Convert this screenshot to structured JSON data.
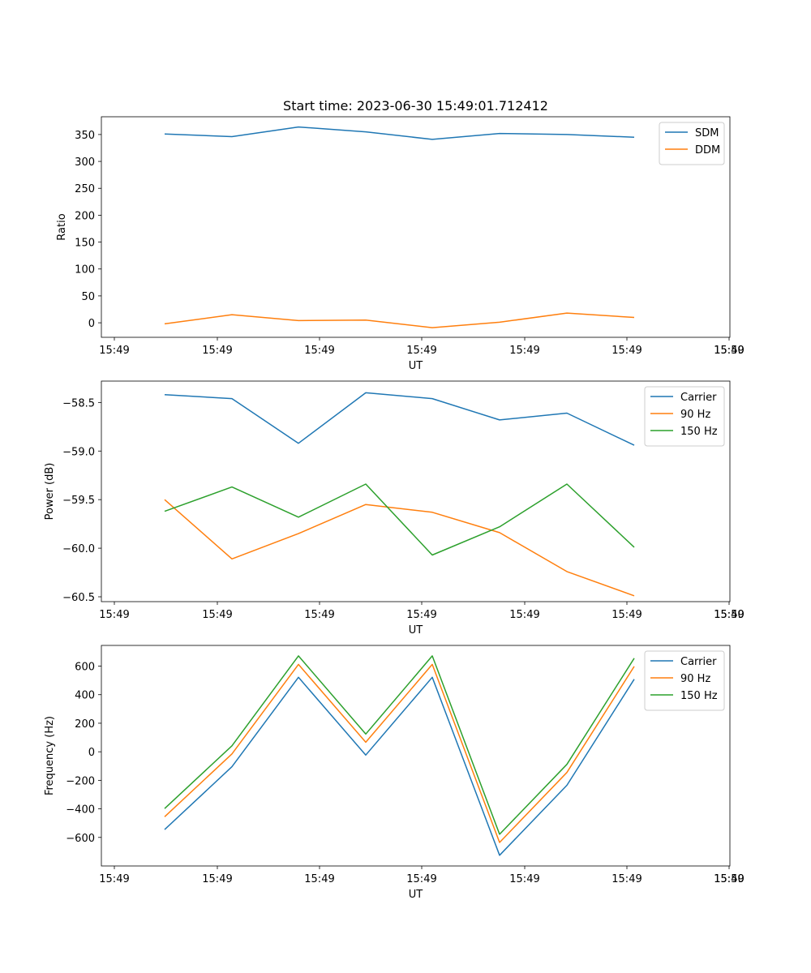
{
  "figure_title": "Start time: 2023-06-30 15:49:01.712412",
  "chart_data": [
    {
      "type": "line",
      "title": "Start time: 2023-06-30 15:49:01.712412",
      "xlabel": "UT",
      "ylabel": "Ratio",
      "x_tick_labels": [
        "15:49",
        "15:49",
        "15:49",
        "15:49",
        "15:49",
        "15:49",
        "15:49",
        "15:50"
      ],
      "y_ticks": [
        0,
        50,
        100,
        150,
        200,
        250,
        300,
        350
      ],
      "ylim": [
        -27,
        383
      ],
      "grid": false,
      "legend_position": "top-right",
      "series": [
        {
          "name": "SDM",
          "color": "#1f77b4",
          "values": [
            351,
            346,
            364,
            355,
            341,
            352,
            350,
            345
          ]
        },
        {
          "name": "DDM",
          "color": "#ff7f0e",
          "values": [
            -2,
            15,
            4,
            5,
            -9,
            1,
            18,
            10
          ]
        }
      ]
    },
    {
      "type": "line",
      "title": "",
      "xlabel": "UT",
      "ylabel": "Power (dB)",
      "x_tick_labels": [
        "15:49",
        "15:49",
        "15:49",
        "15:49",
        "15:49",
        "15:49",
        "15:49",
        "15:50"
      ],
      "y_ticks": [
        -58.5,
        -59.0,
        -59.5,
        -60.0,
        -60.5
      ],
      "y_tick_labels": [
        "−58.5",
        "−59.0",
        "−59.5",
        "−60.0",
        "−60.5"
      ],
      "ylim": [
        -60.55,
        -58.28
      ],
      "grid": false,
      "legend_position": "top-right",
      "series": [
        {
          "name": "Carrier",
          "color": "#1f77b4",
          "values": [
            -58.42,
            -58.46,
            -58.92,
            -58.4,
            -58.46,
            -58.68,
            -58.61,
            -58.94
          ]
        },
        {
          "name": "90 Hz",
          "color": "#ff7f0e",
          "values": [
            -59.5,
            -60.11,
            -59.85,
            -59.55,
            -59.63,
            -59.84,
            -60.24,
            -60.49
          ]
        },
        {
          "name": "150 Hz",
          "color": "#2ca02c",
          "values": [
            -59.62,
            -59.37,
            -59.68,
            -59.34,
            -60.07,
            -59.78,
            -59.34,
            -59.99
          ]
        }
      ]
    },
    {
      "type": "line",
      "title": "",
      "xlabel": "UT",
      "ylabel": "Frequency (Hz)",
      "x_tick_labels": [
        "15:49",
        "15:49",
        "15:49",
        "15:49",
        "15:49",
        "15:49",
        "15:49",
        "15:50"
      ],
      "y_ticks": [
        -600,
        -400,
        -200,
        0,
        200,
        400,
        600
      ],
      "y_tick_labels": [
        "−600",
        "−400",
        "−200",
        "0",
        "200",
        "400",
        "600"
      ],
      "ylim": [
        -800,
        745
      ],
      "grid": false,
      "legend_position": "top-right",
      "series": [
        {
          "name": "Carrier",
          "color": "#1f77b4",
          "values": [
            -545,
            -105,
            522,
            -23,
            522,
            -725,
            -235,
            508
          ]
        },
        {
          "name": "90 Hz",
          "color": "#ff7f0e",
          "values": [
            -455,
            -15,
            612,
            67,
            612,
            -635,
            -145,
            598
          ]
        },
        {
          "name": "150 Hz",
          "color": "#2ca02c",
          "values": [
            -398,
            42,
            672,
            124,
            672,
            -578,
            -88,
            655
          ]
        }
      ]
    }
  ]
}
